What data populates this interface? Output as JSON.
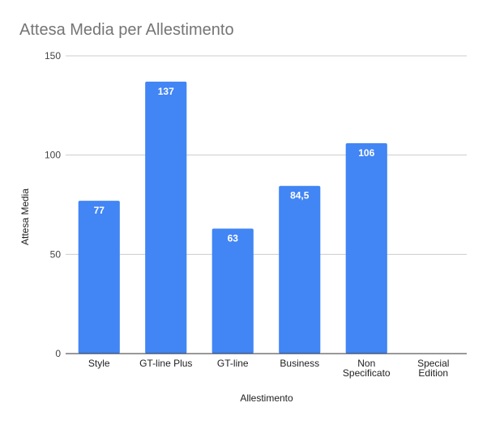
{
  "chart_data": {
    "type": "bar",
    "title": "Attesa Media per Allestimento",
    "xlabel": "Allestimento",
    "ylabel": "Attesa Media",
    "categories": [
      "Style",
      "GT-line Plus",
      "GT-line",
      "Business",
      "Non Specificato",
      "Special Edition"
    ],
    "category_lines": [
      [
        "Style"
      ],
      [
        "GT-line Plus"
      ],
      [
        "GT-line"
      ],
      [
        "Business"
      ],
      [
        "Non",
        "Specificato"
      ],
      [
        "Special",
        "Edition"
      ]
    ],
    "values": [
      77,
      137,
      63,
      84.5,
      106,
      null
    ],
    "value_labels": [
      "77",
      "137",
      "63",
      "84,5",
      "106",
      ""
    ],
    "ylim": [
      0,
      150
    ],
    "yticks": [
      0,
      50,
      100,
      150
    ],
    "ytick_labels": [
      "0",
      "50",
      "100",
      "150"
    ],
    "grid": true,
    "legend": "none",
    "bar_color": "#4285f4"
  }
}
